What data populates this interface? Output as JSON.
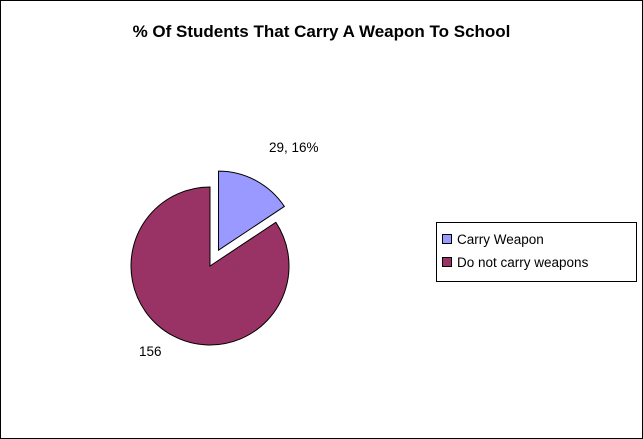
{
  "chart_data": {
    "type": "pie",
    "title": "% Of Students That Carry A Weapon To School",
    "slices": [
      {
        "name": "Carry Weapon",
        "value": 29,
        "label": "29, 16%",
        "color": "#9999ff",
        "exploded": true
      },
      {
        "name": "Do not carry weapons",
        "value": 156,
        "label": "156",
        "color": "#993366",
        "exploded": false
      }
    ],
    "legend_position": "right"
  }
}
